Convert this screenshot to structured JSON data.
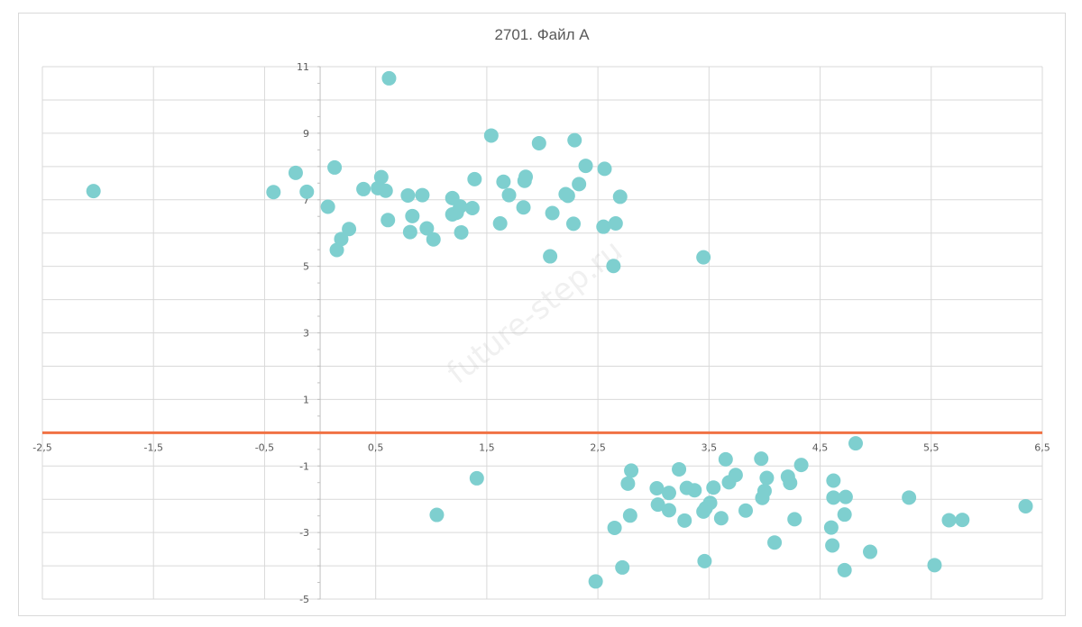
{
  "chart_data": {
    "type": "scatter",
    "title": "2701. Файл А",
    "xlabel": "",
    "ylabel": "",
    "xlim": [
      -2.5,
      6.5
    ],
    "ylim": [
      -5,
      11
    ],
    "x_ticks": [
      "-2,5",
      "-1,5",
      "-0,5",
      "0,5",
      "1,5",
      "2,5",
      "3,5",
      "4,5",
      "5,5",
      "6,5"
    ],
    "y_ticks": [
      "11",
      "9",
      "7",
      "5",
      "3",
      "1",
      "-1",
      "-3",
      "-5"
    ],
    "grid": "on",
    "marker_color": "#7ecfcf",
    "reference_line": {
      "y": 0,
      "color": "#f07244"
    },
    "watermark": "future-step.ru",
    "points": [
      [
        -2.04,
        7.26
      ],
      [
        -0.42,
        7.23
      ],
      [
        -0.22,
        7.81
      ],
      [
        -0.12,
        7.24
      ],
      [
        0.07,
        6.79
      ],
      [
        0.13,
        7.97
      ],
      [
        0.15,
        5.49
      ],
      [
        0.19,
        5.82
      ],
      [
        0.26,
        6.12
      ],
      [
        0.39,
        7.32
      ],
      [
        0.52,
        7.35
      ],
      [
        0.55,
        7.68
      ],
      [
        0.59,
        7.27
      ],
      [
        0.62,
        10.65
      ],
      [
        0.61,
        6.39
      ],
      [
        0.79,
        7.13
      ],
      [
        0.81,
        6.03
      ],
      [
        0.83,
        6.51
      ],
      [
        0.92,
        7.14
      ],
      [
        0.96,
        6.14
      ],
      [
        1.02,
        5.81
      ],
      [
        1.19,
        6.56
      ],
      [
        1.19,
        7.05
      ],
      [
        1.23,
        6.61
      ],
      [
        1.26,
        6.8
      ],
      [
        1.27,
        6.02
      ],
      [
        1.37,
        6.75
      ],
      [
        1.39,
        7.62
      ],
      [
        1.54,
        8.93
      ],
      [
        1.62,
        6.29
      ],
      [
        1.65,
        7.54
      ],
      [
        1.7,
        7.14
      ],
      [
        1.83,
        6.77
      ],
      [
        1.84,
        7.57
      ],
      [
        1.85,
        7.69
      ],
      [
        1.97,
        8.7
      ],
      [
        2.07,
        5.3
      ],
      [
        2.09,
        6.6
      ],
      [
        2.21,
        7.17
      ],
      [
        2.23,
        7.12
      ],
      [
        2.28,
        6.28
      ],
      [
        2.29,
        8.79
      ],
      [
        2.33,
        7.47
      ],
      [
        2.39,
        8.02
      ],
      [
        2.55,
        6.19
      ],
      [
        2.56,
        7.93
      ],
      [
        2.66,
        6.29
      ],
      [
        2.7,
        7.09
      ],
      [
        2.64,
        5.01
      ],
      [
        3.45,
        5.27
      ],
      [
        4.82,
        -0.32
      ],
      [
        4.33,
        -0.97
      ],
      [
        3.97,
        -0.78
      ],
      [
        3.65,
        -0.8
      ],
      [
        2.8,
        -1.14
      ],
      [
        3.23,
        -1.1
      ],
      [
        3.74,
        -1.27
      ],
      [
        4.02,
        -1.36
      ],
      [
        4.21,
        -1.32
      ],
      [
        4.23,
        -1.51
      ],
      [
        4.62,
        -1.44
      ],
      [
        3.03,
        -1.67
      ],
      [
        3.14,
        -1.81
      ],
      [
        3.3,
        -1.66
      ],
      [
        3.37,
        -1.73
      ],
      [
        3.54,
        -1.65
      ],
      [
        3.68,
        -1.49
      ],
      [
        4.0,
        -1.75
      ],
      [
        2.77,
        -1.53
      ],
      [
        3.98,
        -1.96
      ],
      [
        4.62,
        -1.95
      ],
      [
        4.73,
        -1.93
      ],
      [
        5.3,
        -1.95
      ],
      [
        6.35,
        -2.21
      ],
      [
        3.04,
        -2.16
      ],
      [
        3.14,
        -2.33
      ],
      [
        3.47,
        -2.27
      ],
      [
        3.51,
        -2.11
      ],
      [
        3.45,
        -2.37
      ],
      [
        3.83,
        -2.34
      ],
      [
        3.61,
        -2.57
      ],
      [
        3.28,
        -2.64
      ],
      [
        2.79,
        -2.49
      ],
      [
        4.27,
        -2.6
      ],
      [
        4.72,
        -2.46
      ],
      [
        5.66,
        -2.63
      ],
      [
        5.78,
        -2.62
      ],
      [
        4.6,
        -2.85
      ],
      [
        2.65,
        -2.86
      ],
      [
        4.61,
        -3.39
      ],
      [
        4.95,
        -3.58
      ],
      [
        4.09,
        -3.3
      ],
      [
        1.05,
        -2.47
      ],
      [
        1.41,
        -1.37
      ],
      [
        3.46,
        -3.86
      ],
      [
        2.72,
        -4.05
      ],
      [
        4.72,
        -4.13
      ],
      [
        5.53,
        -3.98
      ],
      [
        2.48,
        -4.47
      ]
    ]
  }
}
